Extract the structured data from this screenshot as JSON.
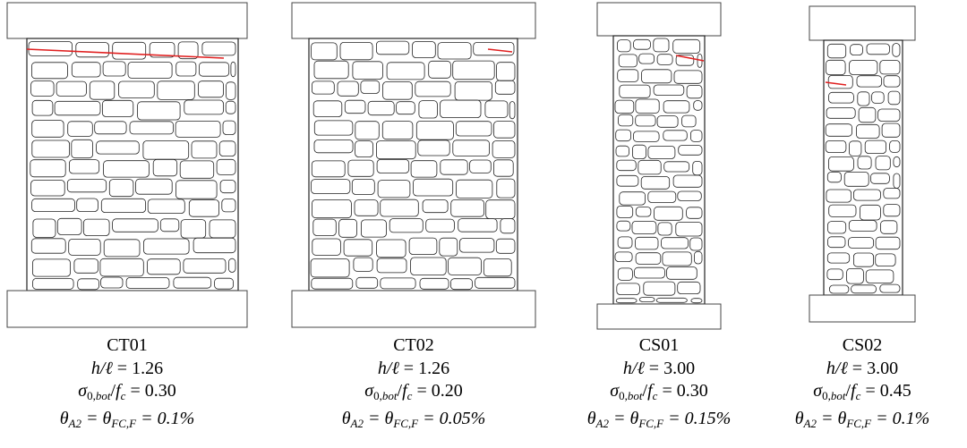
{
  "specimens": [
    {
      "lines": [
        [
          {
            "text": "CT01"
          }
        ],
        [
          {
            "text": "h/ℓ",
            "italic": true
          },
          {
            "text": " = 1.26"
          }
        ],
        [
          {
            "text": "σ",
            "italic": true
          },
          {
            "text": "0,",
            "sub": true
          },
          {
            "text": "bot",
            "sub": true,
            "italic": true
          },
          {
            "text": "/"
          },
          {
            "text": "f",
            "italic": true
          },
          {
            "text": "c",
            "sub": true,
            "italic": true
          },
          {
            "text": " = 0.30"
          }
        ],
        [
          {
            "text": "θ",
            "italic": true
          },
          {
            "text": "A2",
            "sub": true,
            "italic": true
          },
          {
            "text": " = θ",
            "italic": true
          },
          {
            "text": "FC,F",
            "sub": true,
            "italic": true
          },
          {
            "text": " = 0.1%",
            "italic": true
          }
        ]
      ]
    },
    {
      "lines": [
        [
          {
            "text": "CT02"
          }
        ],
        [
          {
            "text": "h/ℓ",
            "italic": true
          },
          {
            "text": " = 1.26"
          }
        ],
        [
          {
            "text": "σ",
            "italic": true
          },
          {
            "text": "0,",
            "sub": true
          },
          {
            "text": "bot",
            "sub": true,
            "italic": true
          },
          {
            "text": "/"
          },
          {
            "text": "f",
            "italic": true
          },
          {
            "text": "c",
            "sub": true,
            "italic": true
          },
          {
            "text": " = 0.20"
          }
        ],
        [
          {
            "text": "θ",
            "italic": true
          },
          {
            "text": "A2",
            "sub": true,
            "italic": true
          },
          {
            "text": " = θ",
            "italic": true
          },
          {
            "text": "FC,F",
            "sub": true,
            "italic": true
          },
          {
            "text": " = 0.05%",
            "italic": true
          }
        ]
      ]
    },
    {
      "lines": [
        [
          {
            "text": "CS01"
          }
        ],
        [
          {
            "text": "h/ℓ",
            "italic": true
          },
          {
            "text": " = 3.00"
          }
        ],
        [
          {
            "text": "σ",
            "italic": true
          },
          {
            "text": "0,",
            "sub": true
          },
          {
            "text": "bot",
            "sub": true,
            "italic": true
          },
          {
            "text": "/"
          },
          {
            "text": "f",
            "italic": true
          },
          {
            "text": "c",
            "sub": true,
            "italic": true
          },
          {
            "text": " = 0.30"
          }
        ],
        [
          {
            "text": "θ",
            "italic": true
          },
          {
            "text": "A2",
            "sub": true,
            "italic": true
          },
          {
            "text": " = θ",
            "italic": true
          },
          {
            "text": "FC,F",
            "sub": true,
            "italic": true
          },
          {
            "text": " = 0.15%",
            "italic": true
          }
        ]
      ]
    },
    {
      "lines": [
        [
          {
            "text": "CS02"
          }
        ],
        [
          {
            "text": "h/ℓ",
            "italic": true
          },
          {
            "text": " = 3.00"
          }
        ],
        [
          {
            "text": "σ",
            "italic": true
          },
          {
            "text": "0,",
            "sub": true
          },
          {
            "text": "bot",
            "sub": true,
            "italic": true
          },
          {
            "text": "/"
          },
          {
            "text": "f",
            "italic": true
          },
          {
            "text": "c",
            "sub": true,
            "italic": true
          },
          {
            "text": " = 0.45"
          }
        ],
        [
          {
            "text": "θ",
            "italic": true
          },
          {
            "text": "A2",
            "sub": true,
            "italic": true
          },
          {
            "text": " = θ",
            "italic": true
          },
          {
            "text": "FC,F",
            "sub": true,
            "italic": true
          },
          {
            "text": " = 0.1%",
            "italic": true
          }
        ]
      ]
    }
  ]
}
